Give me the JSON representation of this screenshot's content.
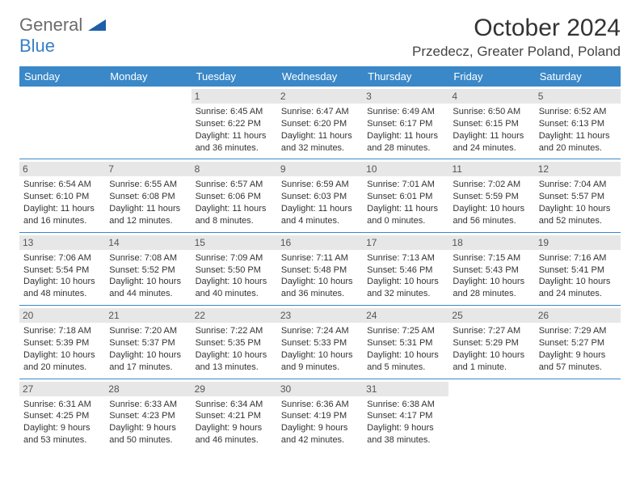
{
  "logo": {
    "word1": "General",
    "word2": "Blue"
  },
  "title": "October 2024",
  "location": "Przedecz, Greater Poland, Poland",
  "colors": {
    "header_bg": "#3a88c8",
    "header_text": "#ffffff",
    "daynum_bg": "#e7e7e7",
    "daynum_text": "#555555",
    "body_text": "#333333",
    "logo_gray": "#6c6c6c",
    "logo_blue": "#3a7fc4"
  },
  "day_headers": [
    "Sunday",
    "Monday",
    "Tuesday",
    "Wednesday",
    "Thursday",
    "Friday",
    "Saturday"
  ],
  "weeks": [
    [
      null,
      null,
      {
        "n": "1",
        "sunrise": "6:45 AM",
        "sunset": "6:22 PM",
        "daylight": "11 hours and 36 minutes."
      },
      {
        "n": "2",
        "sunrise": "6:47 AM",
        "sunset": "6:20 PM",
        "daylight": "11 hours and 32 minutes."
      },
      {
        "n": "3",
        "sunrise": "6:49 AM",
        "sunset": "6:17 PM",
        "daylight": "11 hours and 28 minutes."
      },
      {
        "n": "4",
        "sunrise": "6:50 AM",
        "sunset": "6:15 PM",
        "daylight": "11 hours and 24 minutes."
      },
      {
        "n": "5",
        "sunrise": "6:52 AM",
        "sunset": "6:13 PM",
        "daylight": "11 hours and 20 minutes."
      }
    ],
    [
      {
        "n": "6",
        "sunrise": "6:54 AM",
        "sunset": "6:10 PM",
        "daylight": "11 hours and 16 minutes."
      },
      {
        "n": "7",
        "sunrise": "6:55 AM",
        "sunset": "6:08 PM",
        "daylight": "11 hours and 12 minutes."
      },
      {
        "n": "8",
        "sunrise": "6:57 AM",
        "sunset": "6:06 PM",
        "daylight": "11 hours and 8 minutes."
      },
      {
        "n": "9",
        "sunrise": "6:59 AM",
        "sunset": "6:03 PM",
        "daylight": "11 hours and 4 minutes."
      },
      {
        "n": "10",
        "sunrise": "7:01 AM",
        "sunset": "6:01 PM",
        "daylight": "11 hours and 0 minutes."
      },
      {
        "n": "11",
        "sunrise": "7:02 AM",
        "sunset": "5:59 PM",
        "daylight": "10 hours and 56 minutes."
      },
      {
        "n": "12",
        "sunrise": "7:04 AM",
        "sunset": "5:57 PM",
        "daylight": "10 hours and 52 minutes."
      }
    ],
    [
      {
        "n": "13",
        "sunrise": "7:06 AM",
        "sunset": "5:54 PM",
        "daylight": "10 hours and 48 minutes."
      },
      {
        "n": "14",
        "sunrise": "7:08 AM",
        "sunset": "5:52 PM",
        "daylight": "10 hours and 44 minutes."
      },
      {
        "n": "15",
        "sunrise": "7:09 AM",
        "sunset": "5:50 PM",
        "daylight": "10 hours and 40 minutes."
      },
      {
        "n": "16",
        "sunrise": "7:11 AM",
        "sunset": "5:48 PM",
        "daylight": "10 hours and 36 minutes."
      },
      {
        "n": "17",
        "sunrise": "7:13 AM",
        "sunset": "5:46 PM",
        "daylight": "10 hours and 32 minutes."
      },
      {
        "n": "18",
        "sunrise": "7:15 AM",
        "sunset": "5:43 PM",
        "daylight": "10 hours and 28 minutes."
      },
      {
        "n": "19",
        "sunrise": "7:16 AM",
        "sunset": "5:41 PM",
        "daylight": "10 hours and 24 minutes."
      }
    ],
    [
      {
        "n": "20",
        "sunrise": "7:18 AM",
        "sunset": "5:39 PM",
        "daylight": "10 hours and 20 minutes."
      },
      {
        "n": "21",
        "sunrise": "7:20 AM",
        "sunset": "5:37 PM",
        "daylight": "10 hours and 17 minutes."
      },
      {
        "n": "22",
        "sunrise": "7:22 AM",
        "sunset": "5:35 PM",
        "daylight": "10 hours and 13 minutes."
      },
      {
        "n": "23",
        "sunrise": "7:24 AM",
        "sunset": "5:33 PM",
        "daylight": "10 hours and 9 minutes."
      },
      {
        "n": "24",
        "sunrise": "7:25 AM",
        "sunset": "5:31 PM",
        "daylight": "10 hours and 5 minutes."
      },
      {
        "n": "25",
        "sunrise": "7:27 AM",
        "sunset": "5:29 PM",
        "daylight": "10 hours and 1 minute."
      },
      {
        "n": "26",
        "sunrise": "7:29 AM",
        "sunset": "5:27 PM",
        "daylight": "9 hours and 57 minutes."
      }
    ],
    [
      {
        "n": "27",
        "sunrise": "6:31 AM",
        "sunset": "4:25 PM",
        "daylight": "9 hours and 53 minutes."
      },
      {
        "n": "28",
        "sunrise": "6:33 AM",
        "sunset": "4:23 PM",
        "daylight": "9 hours and 50 minutes."
      },
      {
        "n": "29",
        "sunrise": "6:34 AM",
        "sunset": "4:21 PM",
        "daylight": "9 hours and 46 minutes."
      },
      {
        "n": "30",
        "sunrise": "6:36 AM",
        "sunset": "4:19 PM",
        "daylight": "9 hours and 42 minutes."
      },
      {
        "n": "31",
        "sunrise": "6:38 AM",
        "sunset": "4:17 PM",
        "daylight": "9 hours and 38 minutes."
      },
      null,
      null
    ]
  ]
}
